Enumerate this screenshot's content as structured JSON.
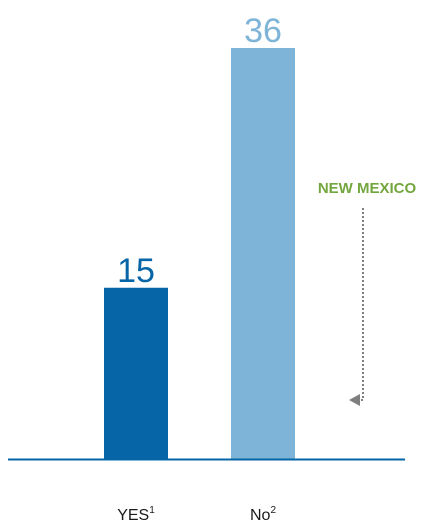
{
  "chart_data": {
    "type": "bar",
    "categories": [
      "YES",
      "No"
    ],
    "category_footnotes": [
      "1",
      "2"
    ],
    "values": [
      15,
      36
    ],
    "value_labels": [
      "15",
      "36"
    ],
    "bar_colors": [
      "#0565a7",
      "#7eb4d7"
    ],
    "title": "",
    "xlabel": "",
    "ylabel": "",
    "ylim": [
      0,
      36
    ],
    "grid": false,
    "annotation": {
      "text": "NEW MEXICO",
      "color": "#73a63e",
      "points_to_category": "No"
    }
  },
  "colors": {
    "axis": "#0565a7",
    "arrow": "#7f7f7f",
    "text": "#1a1a1a"
  }
}
